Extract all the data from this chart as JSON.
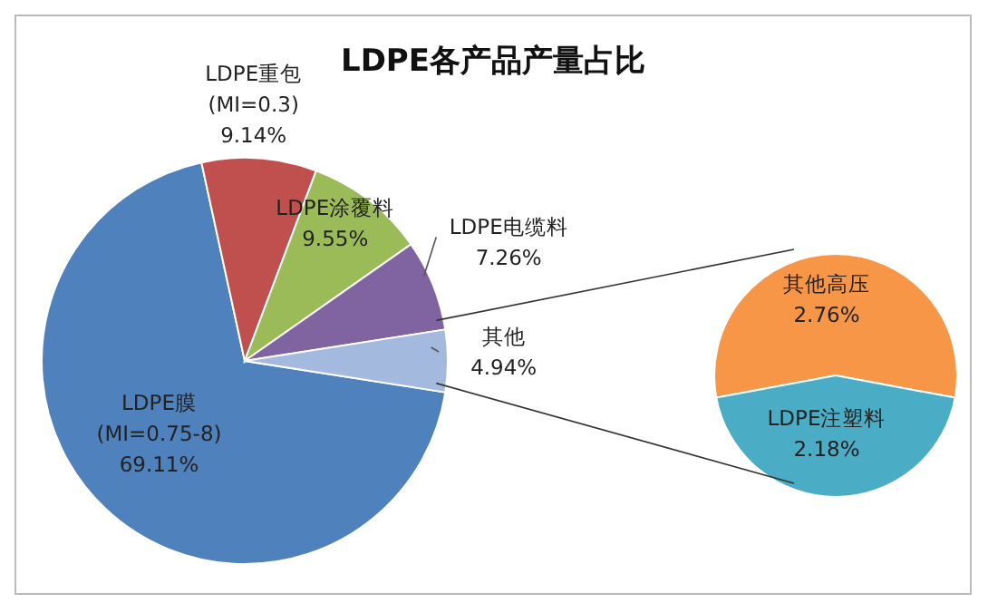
{
  "chart_data": [
    {
      "type": "pie",
      "title": "LDPE各产品产量占比",
      "categories": [
        "LDPE膜\n(MI=0.75-8)",
        "LDPE重包\n(MI=0.3)",
        "LDPE涂覆料",
        "LDPE电缆料",
        "其他"
      ],
      "values": [
        69.11,
        9.14,
        9.55,
        7.26,
        4.94
      ],
      "colors": [
        "#4f81bd",
        "#c0504d",
        "#9bbb59",
        "#8064a2",
        "#a3b9de"
      ],
      "value_labels": [
        "69.11%",
        "9.14%",
        "9.55%",
        "7.26%",
        "4.94%"
      ],
      "legend": false
    },
    {
      "type": "pie",
      "categories": [
        "其他高压",
        "LDPE注塑料"
      ],
      "values": [
        2.76,
        2.18
      ],
      "colors": [
        "#f79646",
        "#4bacc6"
      ],
      "value_labels": [
        "2.76%",
        "2.18%"
      ],
      "legend": false
    }
  ]
}
